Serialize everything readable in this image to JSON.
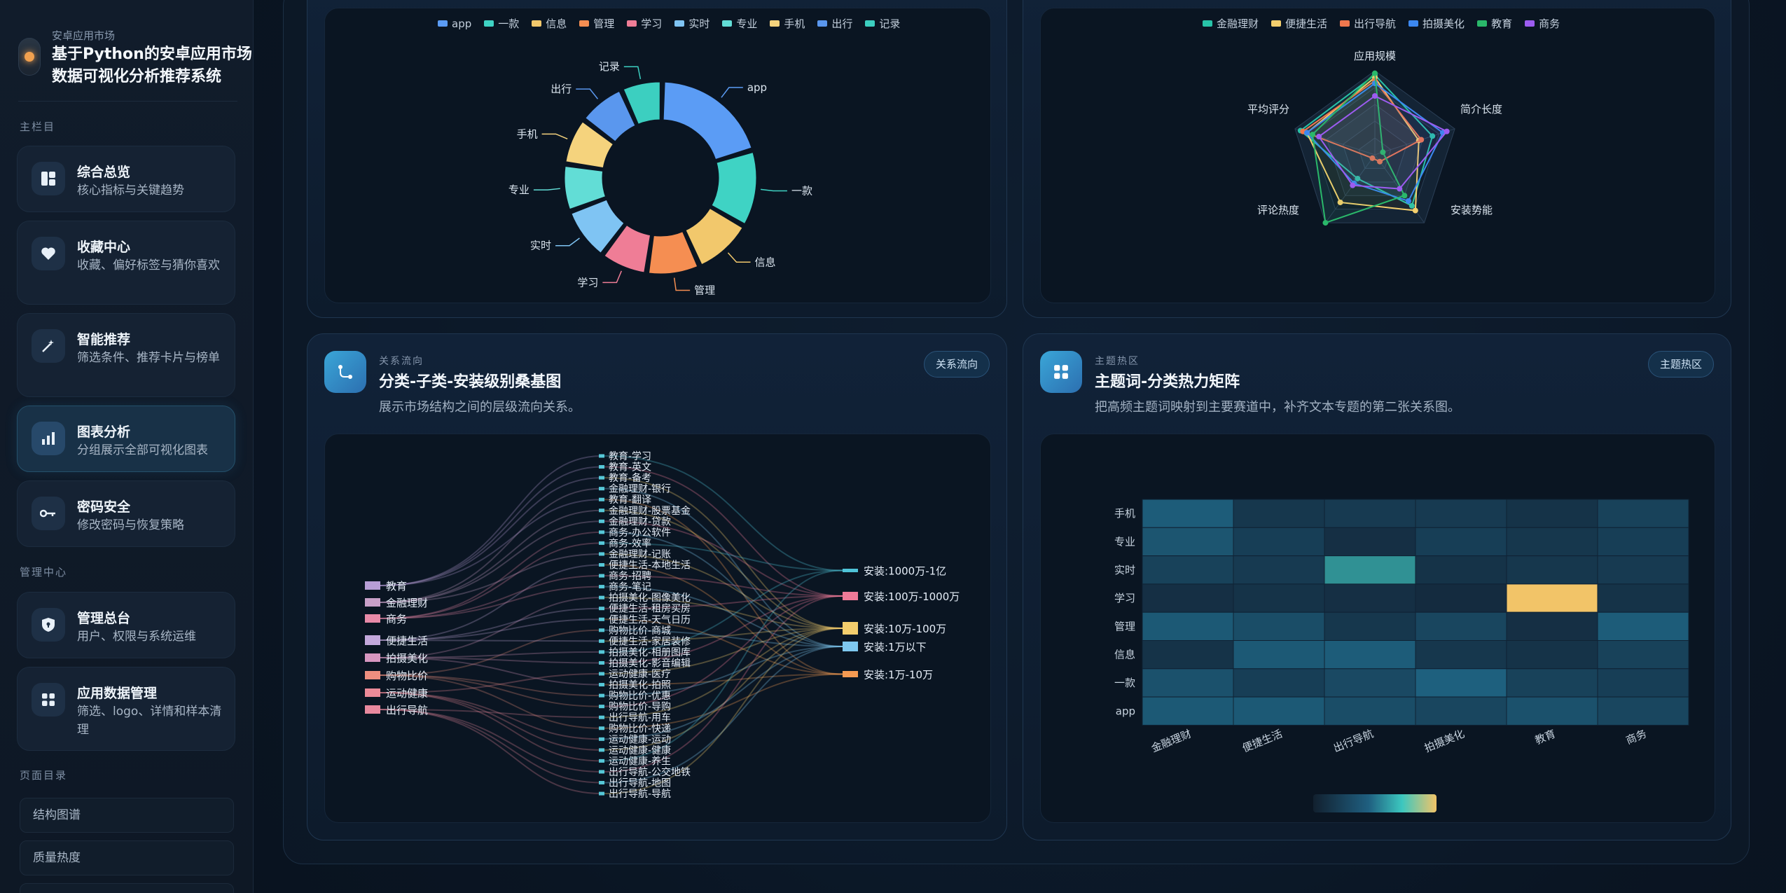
{
  "sidebar": {
    "brand_sub": "安卓应用市场",
    "brand_title": "基于Python的安卓应用市场数据可视化分析推荐系统",
    "section_main": "主栏目",
    "section_admin": "管理中心",
    "section_toc": "页面目录",
    "nav": [
      {
        "title": "综合总览",
        "desc": "核心指标与关键趋势",
        "icon": "dashboard-icon"
      },
      {
        "title": "收藏中心",
        "desc": "收藏、偏好标签与猜你喜欢",
        "icon": "heart-icon"
      },
      {
        "title": "智能推荐",
        "desc": "筛选条件、推荐卡片与榜单",
        "icon": "magic-wand-icon"
      },
      {
        "title": "图表分析",
        "desc": "分组展示全部可视化图表",
        "icon": "bar-chart-icon",
        "active": true
      },
      {
        "title": "密码安全",
        "desc": "修改密码与恢复策略",
        "icon": "key-icon"
      }
    ],
    "admin": [
      {
        "title": "管理总台",
        "desc": "用户、权限与系统运维",
        "icon": "shield-icon"
      },
      {
        "title": "应用数据管理",
        "desc": "筛选、logo、详情和样本清理",
        "icon": "grid-icon"
      }
    ],
    "toc": [
      "结构图谱",
      "质量热度"
    ]
  },
  "donut_panel": {
    "legend": [
      "app",
      "一款",
      "信息",
      "管理",
      "学习",
      "实时",
      "专业",
      "手机",
      "出行",
      "记录"
    ],
    "colors": [
      "#5b9cf5",
      "#3fd3c4",
      "#f2c86c",
      "#f58e52",
      "#ef7d96",
      "#7fc4f3",
      "#62ddd6",
      "#f5d37d",
      "#5a97ee",
      "#3ccfc0"
    ],
    "chart_data": {
      "type": "pie",
      "categories": [
        "app",
        "一款",
        "信息",
        "管理",
        "学习",
        "实时",
        "专业",
        "手机",
        "出行",
        "记录"
      ],
      "values": [
        20,
        13,
        10,
        9,
        8,
        9,
        8,
        8,
        8,
        7
      ]
    }
  },
  "radar_panel": {
    "legend": [
      "金融理财",
      "便捷生活",
      "出行导航",
      "拍摄美化",
      "教育",
      "商务"
    ],
    "colors": [
      "#28c3a8",
      "#f4cf6d",
      "#f0784e",
      "#3c88f0",
      "#2ab86a",
      "#9c5cf0"
    ],
    "chart_data": {
      "type": "radar",
      "indicators": [
        "应用规模",
        "简介长度",
        "安装势能",
        "评论热度",
        "平均评分"
      ],
      "series": [
        {
          "name": "金融理财",
          "values": [
            0.95,
            0.72,
            0.75,
            0.35,
            0.93
          ]
        },
        {
          "name": "便捷生活",
          "values": [
            0.92,
            0.55,
            0.82,
            0.7,
            0.85
          ]
        },
        {
          "name": "出行导航",
          "values": [
            0.88,
            0.58,
            0.1,
            0.05,
            0.9
          ]
        },
        {
          "name": "拍摄美化",
          "values": [
            0.85,
            0.85,
            0.68,
            0.42,
            0.85
          ]
        },
        {
          "name": "教育",
          "values": [
            0.97,
            0.1,
            0.6,
            1.0,
            0.78
          ]
        },
        {
          "name": "商务",
          "values": [
            0.7,
            0.9,
            0.5,
            0.45,
            0.7
          ]
        }
      ]
    }
  },
  "sankey_panel": {
    "eyebrow": "关系流向",
    "title": "分类-子类-安装级别桑基图",
    "desc": "展示市场结构之间的层级流向关系。",
    "badge": "关系流向",
    "chart_data": {
      "type": "sankey",
      "left": [
        "教育",
        "金融理财",
        "商务",
        "便捷生活",
        "拍摄美化",
        "购物比价",
        "运动健康",
        "出行导航"
      ],
      "left_colors": [
        "#b79ed6",
        "#c8a0c8",
        "#e88aa8",
        "#c3a8dc",
        "#d796c0",
        "#ee8f7f",
        "#ec8a98",
        "#e8899e"
      ],
      "middle": [
        "教育-学习",
        "教育-英文",
        "教育-备考",
        "金融理财-银行",
        "教育-翻译",
        "金融理财-股票基金",
        "金融理财-贷款",
        "商务-办公软件",
        "商务-效率",
        "金融理财-记账",
        "便捷生活-本地生活",
        "商务-招聘",
        "商务-笔记",
        "拍摄美化-图像美化",
        "便捷生活-租房买房",
        "便捷生活-天气日历",
        "购物比价-商城",
        "便捷生活-家居装修",
        "拍摄美化-相册图库",
        "拍摄美化-影音编辑",
        "运动健康-医疗",
        "拍摄美化-拍照",
        "购物比价-优惠",
        "购物比价-导购",
        "出行导航-用车",
        "购物比价-快递",
        "运动健康-运动",
        "运动健康-健康",
        "运动健康-养生",
        "出行导航-公交地铁",
        "出行导航-地图",
        "出行导航-导航"
      ],
      "right": [
        "安装:1000万-1亿",
        "安装:100万-1000万",
        "安装:10万-100万",
        "安装:1万以下",
        "安装:1万-10万"
      ],
      "right_colors": [
        "#4fc3d8",
        "#ee7a98",
        "#f4ce6d",
        "#7ec8f0",
        "#f59a52"
      ]
    }
  },
  "heatmap_panel": {
    "eyebrow": "主题热区",
    "title": "主题词-分类热力矩阵",
    "desc": "把高频主题词映射到主要赛道中，补齐文本专题的第二张关系图。",
    "badge": "主题热区",
    "chart_data": {
      "type": "heatmap",
      "x": [
        "金融理财",
        "便捷生活",
        "出行导航",
        "拍摄美化",
        "教育",
        "商务"
      ],
      "y": [
        "手机",
        "专业",
        "实时",
        "学习",
        "管理",
        "信息",
        "一款",
        "app"
      ],
      "values": [
        [
          0.32,
          0.12,
          0.14,
          0.14,
          0.1,
          0.18
        ],
        [
          0.28,
          0.16,
          0.08,
          0.16,
          0.12,
          0.16
        ],
        [
          0.18,
          0.14,
          0.62,
          0.1,
          0.12,
          0.14
        ],
        [
          0.08,
          0.1,
          0.08,
          0.06,
          1.0,
          0.1
        ],
        [
          0.3,
          0.24,
          0.12,
          0.2,
          0.08,
          0.32
        ],
        [
          0.1,
          0.3,
          0.32,
          0.12,
          0.1,
          0.18
        ],
        [
          0.26,
          0.16,
          0.22,
          0.34,
          0.18,
          0.16
        ],
        [
          0.3,
          0.3,
          0.24,
          0.2,
          0.26,
          0.2
        ]
      ]
    }
  }
}
